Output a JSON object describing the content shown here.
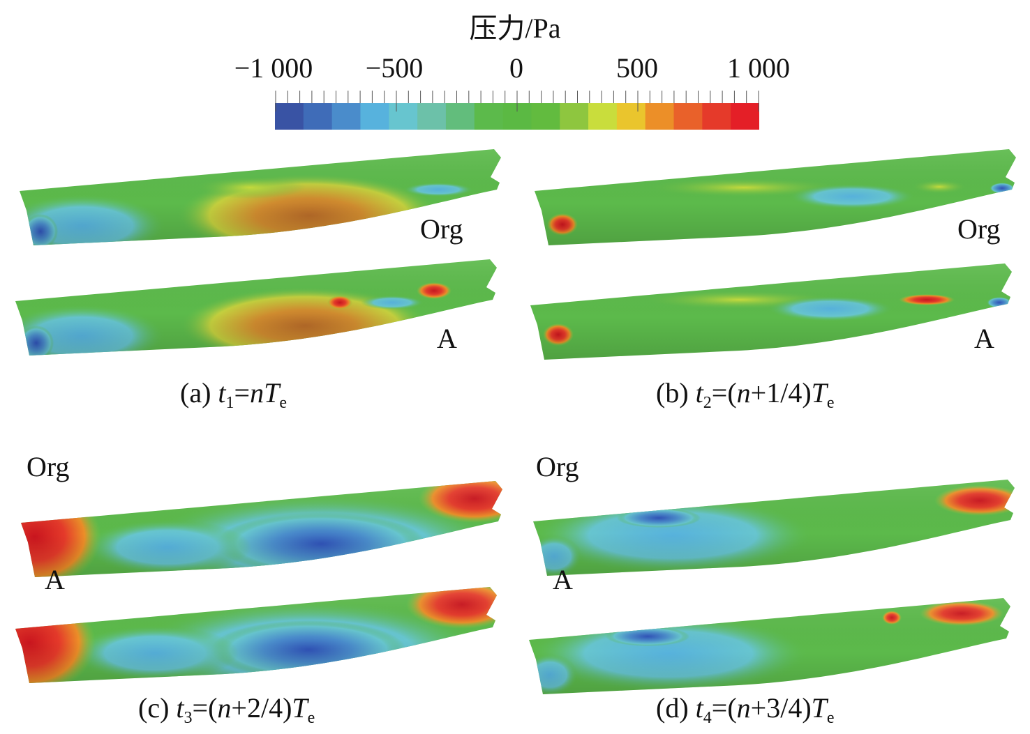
{
  "legend": {
    "title": "压力/Pa",
    "ticks": [
      "−1 000",
      "−500",
      "0",
      "500",
      "1 000"
    ],
    "colors": [
      "#3953a4",
      "#3f6cb8",
      "#4a8ccb",
      "#57b2dd",
      "#67c5cf",
      "#6cc1a9",
      "#62bd7c",
      "#5cba4b",
      "#5bb943",
      "#62bb3f",
      "#8ec63f",
      "#c9dd3c",
      "#eac52d",
      "#ec8f28",
      "#e9612a",
      "#e53a2a",
      "#e41f27"
    ]
  },
  "panels": [
    {
      "top_label": "Org",
      "bottom_label": "A",
      "caption": {
        "prefix": "(a) ",
        "t": "t",
        "tsub": "1",
        "mid": "=",
        "n": "n",
        "rest": "",
        "T": "T",
        "Tsub": "e",
        "close": ""
      }
    },
    {
      "top_label": "Org",
      "bottom_label": "A",
      "caption": {
        "prefix": "(b) ",
        "t": "t",
        "tsub": "2",
        "mid": "=(",
        "n": "n",
        "rest": "+1/4)",
        "T": "T",
        "Tsub": "e",
        "close": ""
      }
    },
    {
      "top_label": "Org",
      "bottom_label": "A",
      "caption": {
        "prefix": "(c) ",
        "t": "t",
        "tsub": "3",
        "mid": "=(",
        "n": "n",
        "rest": "+2/4)",
        "T": "T",
        "Tsub": "e",
        "close": ""
      }
    },
    {
      "top_label": "Org",
      "bottom_label": "A",
      "caption": {
        "prefix": "(d) ",
        "t": "t",
        "tsub": "4",
        "mid": "=(",
        "n": "n",
        "rest": "+3/4)",
        "T": "T",
        "Tsub": "e",
        "close": ""
      }
    }
  ]
}
